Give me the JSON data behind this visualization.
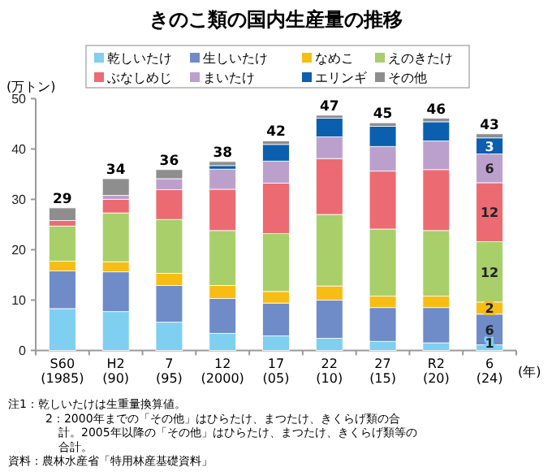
{
  "chart_data": {
    "type": "bar",
    "stacked": true,
    "title": "きのこ類の国内生産量の推移",
    "ylabel": "(万トン)",
    "xlabel": "(年)",
    "categories": [
      "S60 (1985)",
      "H2 (90)",
      "7 (95)",
      "12 (2000)",
      "17 (05)",
      "22 (10)",
      "27 (15)",
      "R2 (20)",
      "6 (24)"
    ],
    "series": [
      {
        "name": "乾しいたけ",
        "color": "#7fcff0",
        "values": [
          8.3,
          7.7,
          5.6,
          3.4,
          2.9,
          2.4,
          1.8,
          1.5,
          1.1
        ],
        "value_labels": [
          null,
          null,
          null,
          null,
          null,
          null,
          null,
          null,
          "1"
        ]
      },
      {
        "name": "生しいたけ",
        "color": "#6f8cc8",
        "values": [
          7.5,
          7.9,
          7.3,
          6.9,
          6.5,
          7.6,
          6.7,
          7.0,
          6.1
        ],
        "value_labels": [
          null,
          null,
          null,
          null,
          null,
          null,
          null,
          null,
          "6"
        ]
      },
      {
        "name": "なめこ",
        "color": "#f7bd14",
        "values": [
          1.9,
          2.0,
          2.4,
          2.6,
          2.3,
          2.8,
          2.3,
          2.3,
          2.4
        ],
        "value_labels": [
          null,
          null,
          null,
          null,
          null,
          null,
          null,
          null,
          "2"
        ]
      },
      {
        "name": "えのきたけ",
        "color": "#a8cf6a",
        "values": [
          7.0,
          9.7,
          10.7,
          10.9,
          11.5,
          14.2,
          13.3,
          13.0,
          12.0
        ],
        "value_labels": [
          null,
          null,
          null,
          null,
          null,
          null,
          null,
          null,
          "12"
        ]
      },
      {
        "name": "ぶなしめじ",
        "color": "#ec6b72",
        "values": [
          1.1,
          2.7,
          5.9,
          8.2,
          10.0,
          11.1,
          11.5,
          12.1,
          11.7
        ],
        "value_labels": [
          null,
          null,
          null,
          null,
          null,
          null,
          null,
          null,
          "12"
        ]
      },
      {
        "name": "まいたけ",
        "color": "#bca0cc",
        "values": [
          null,
          0.8,
          2.2,
          4.0,
          4.4,
          4.3,
          4.9,
          5.7,
          5.7
        ],
        "value_labels": [
          null,
          null,
          null,
          null,
          null,
          null,
          null,
          null,
          "6"
        ]
      },
      {
        "name": "エリンギ",
        "color": "#0b5fae",
        "values": [
          0,
          0,
          0,
          0.7,
          3.3,
          3.7,
          4.0,
          3.8,
          3.2
        ],
        "value_labels": [
          null,
          null,
          null,
          null,
          null,
          null,
          null,
          null,
          "3"
        ]
      },
      {
        "name": "その他",
        "color": "#8e8e8e",
        "values": [
          2.5,
          3.3,
          1.8,
          0.8,
          0.7,
          0.6,
          0.7,
          0.7,
          0.8
        ]
      }
    ],
    "totals": [
      "29",
      "34",
      "36",
      "38",
      "42",
      "47",
      "45",
      "46",
      "43"
    ],
    "ylim": [
      0,
      50
    ],
    "yticks": [
      0,
      10,
      20,
      30,
      40,
      50
    ],
    "legend": "top",
    "annotations": [
      "注1：乾しいたけは生重量換算値。",
      "2：2000年までの「その他」はひらたけ、まつたけ、きくらげ類の合計。2005年以降の「その他」はひらたけ、まつたけ、きくらげ類等の合計。",
      "資料：農林水産省「特用林産基礎資料」"
    ]
  }
}
